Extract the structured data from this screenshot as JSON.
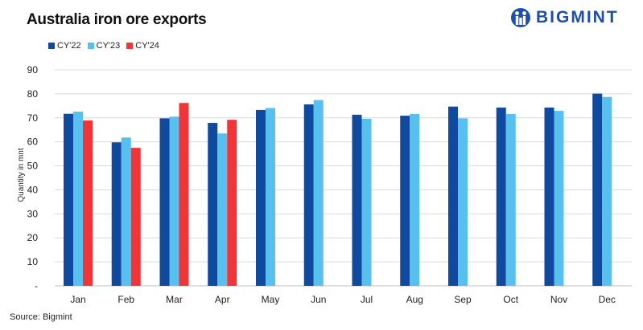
{
  "header": {
    "title": "Australia iron ore exports",
    "brand": "BIGMINT",
    "brand_color": "#1e4fa8"
  },
  "footer": {
    "source": "Source: Bigmint"
  },
  "chart_data": {
    "type": "bar",
    "title": "Australia iron ore exports",
    "xlabel": "",
    "ylabel": "Quantity in mnt",
    "ylim": [
      0,
      90
    ],
    "yticks": [
      "-",
      "10",
      "20",
      "30",
      "40",
      "50",
      "60",
      "70",
      "80",
      "90"
    ],
    "grid": true,
    "legend_position": "top-left",
    "categories": [
      "Jan",
      "Feb",
      "Mar",
      "Apr",
      "May",
      "Jun",
      "Jul",
      "Aug",
      "Sep",
      "Oct",
      "Nov",
      "Dec"
    ],
    "series": [
      {
        "name": "CY'22",
        "color": "#0f4a9e",
        "values": [
          71.7,
          59.8,
          69.8,
          67.9,
          73.3,
          75.6,
          71.3,
          70.9,
          74.7,
          74.3,
          74.3,
          80.1
        ]
      },
      {
        "name": "CY'23",
        "color": "#57c0ee",
        "values": [
          72.6,
          61.8,
          70.5,
          63.5,
          74.1,
          77.4,
          69.6,
          71.6,
          69.8,
          71.6,
          72.9,
          78.7
        ]
      },
      {
        "name": "CY'24",
        "color": "#ef3538",
        "values": [
          68.9,
          57.5,
          76.2,
          69.2,
          null,
          null,
          null,
          null,
          null,
          null,
          null,
          null
        ]
      }
    ]
  }
}
